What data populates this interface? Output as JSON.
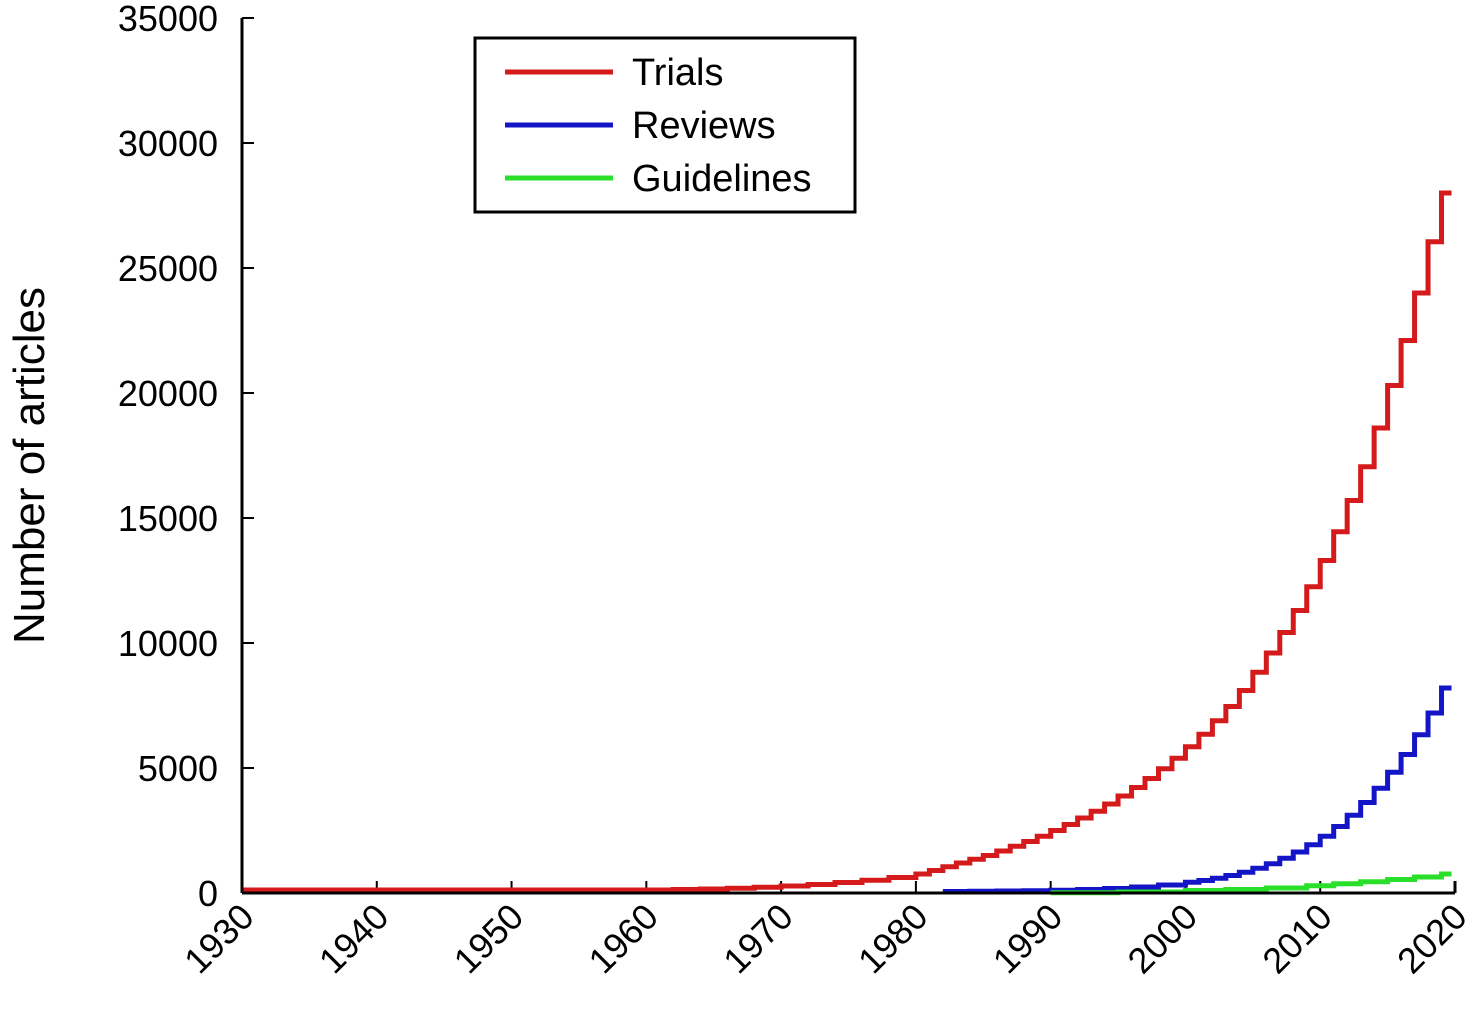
{
  "chart_data": {
    "type": "line",
    "title": "",
    "xlabel": "",
    "ylabel": "Number of articles",
    "xlim": [
      1930,
      2020
    ],
    "ylim": [
      0,
      35000
    ],
    "xticks": [
      1930,
      1940,
      1950,
      1960,
      1970,
      1980,
      1990,
      2000,
      2010,
      2020
    ],
    "yticks": [
      0,
      5000,
      10000,
      15000,
      20000,
      25000,
      30000,
      35000
    ],
    "grid": false,
    "legend_position": "top-left",
    "series": [
      {
        "name": "Trials",
        "color": "#d41a1a",
        "x": [
          1930,
          1935,
          1940,
          1945,
          1950,
          1955,
          1960,
          1962,
          1964,
          1966,
          1968,
          1970,
          1972,
          1974,
          1976,
          1978,
          1980,
          1981,
          1982,
          1983,
          1984,
          1985,
          1986,
          1987,
          1988,
          1989,
          1990,
          1991,
          1992,
          1993,
          1994,
          1995,
          1996,
          1997,
          1998,
          1999,
          2000,
          2001,
          2002,
          2003,
          2004,
          2005,
          2006,
          2007,
          2008,
          2009,
          2010,
          2011,
          2012,
          2013,
          2014,
          2015,
          2016,
          2017,
          2018,
          2019
        ],
        "values": [
          120,
          120,
          120,
          120,
          120,
          120,
          120,
          140,
          160,
          190,
          230,
          280,
          340,
          420,
          510,
          620,
          760,
          900,
          1050,
          1200,
          1350,
          1500,
          1680,
          1870,
          2060,
          2270,
          2500,
          2740,
          3000,
          3270,
          3560,
          3880,
          4220,
          4580,
          4970,
          5390,
          5850,
          6350,
          6890,
          7460,
          8100,
          8830,
          9600,
          10420,
          11300,
          12250,
          13300,
          14450,
          15700,
          17050,
          18600,
          20300,
          22100,
          24000,
          26050,
          28000
        ]
      },
      {
        "name": "Reviews",
        "color": "#1515c8",
        "x": [
          1982,
          1984,
          1986,
          1988,
          1990,
          1992,
          1994,
          1996,
          1998,
          2000,
          2001,
          2002,
          2003,
          2004,
          2005,
          2006,
          2007,
          2008,
          2009,
          2010,
          2011,
          2012,
          2013,
          2014,
          2015,
          2016,
          2017,
          2018,
          2019
        ],
        "values": [
          60,
          70,
          80,
          90,
          110,
          140,
          180,
          240,
          320,
          430,
          500,
          590,
          700,
          830,
          990,
          1170,
          1390,
          1640,
          1930,
          2270,
          2660,
          3110,
          3620,
          4190,
          4830,
          5540,
          6330,
          7200,
          8200
        ]
      },
      {
        "name": "Guidelines",
        "color": "#2adf2a",
        "x": [
          1990,
          1995,
          2000,
          2003,
          2006,
          2009,
          2011,
          2013,
          2015,
          2017,
          2019
        ],
        "values": [
          10,
          40,
          100,
          140,
          200,
          290,
          370,
          450,
          540,
          640,
          760
        ]
      }
    ]
  }
}
